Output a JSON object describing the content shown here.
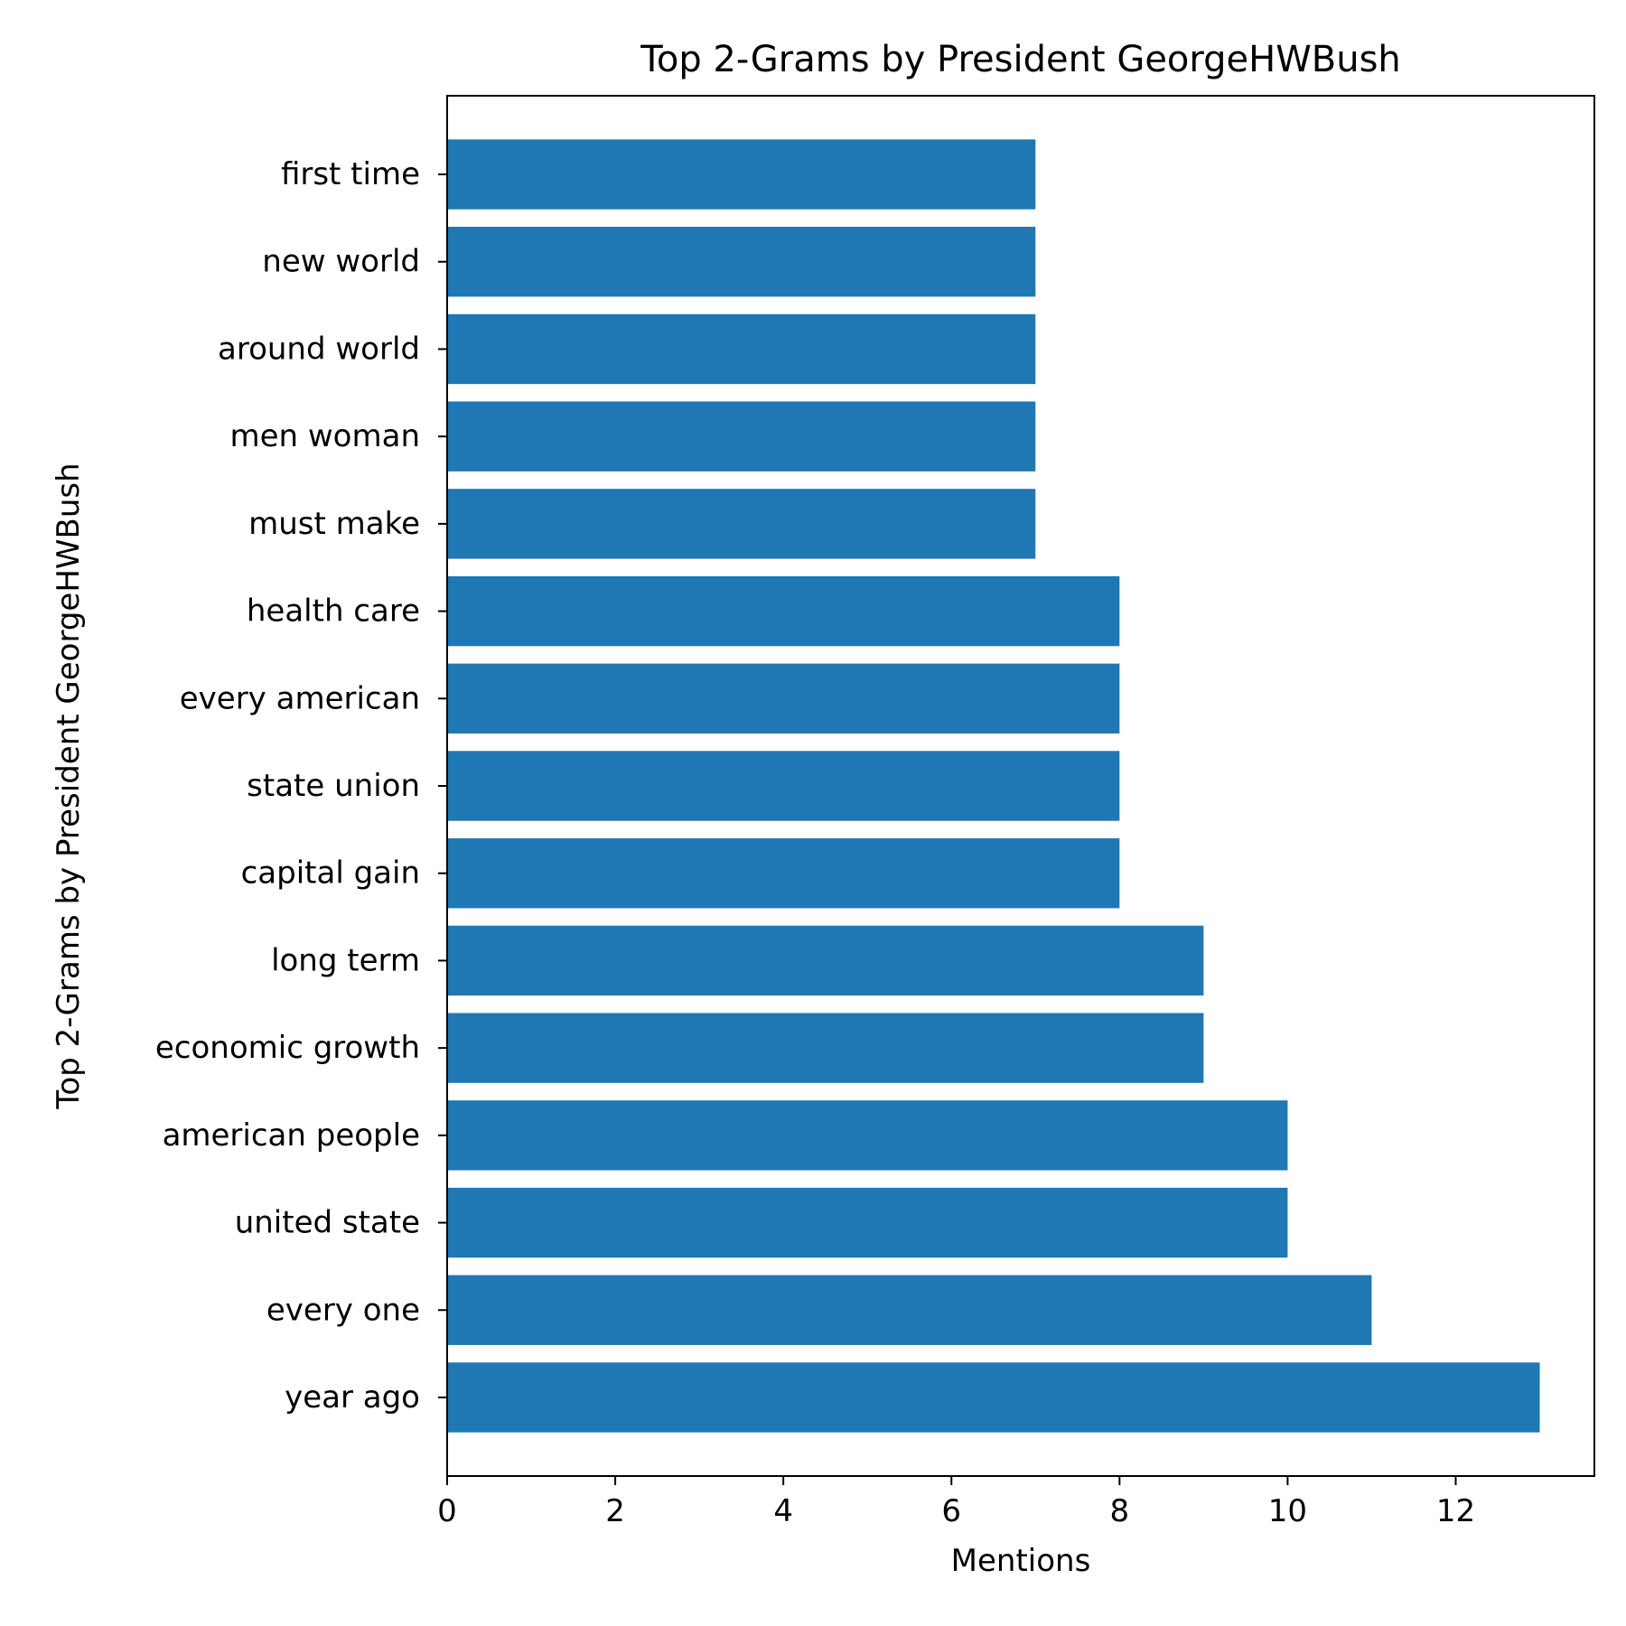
{
  "chart_data": {
    "type": "bar",
    "orientation": "horizontal",
    "title": "Top 2-Grams by President GeorgeHWBush",
    "xlabel": "Mentions",
    "ylabel": "Top 2-Grams by President GeorgeHWBush",
    "categories": [
      "year ago",
      "every one",
      "united state",
      "american people",
      "economic growth",
      "long term",
      "capital gain",
      "state union",
      "every american",
      "health care",
      "must make",
      "men woman",
      "around world",
      "new world",
      "first time"
    ],
    "values": [
      13,
      11,
      10,
      10,
      9,
      9,
      8,
      8,
      8,
      8,
      7,
      7,
      7,
      7,
      7
    ],
    "xlim": [
      0,
      13.65
    ],
    "xticks": [
      0,
      2,
      4,
      6,
      8,
      10,
      12
    ],
    "bar_color": "#1f77b4",
    "grid": false,
    "legend": "none"
  }
}
